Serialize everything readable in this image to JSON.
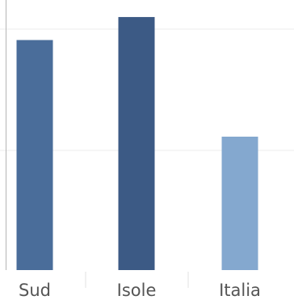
{
  "chart_data": {
    "type": "bar",
    "categories": [
      "Sud",
      "Isole",
      "Italia"
    ],
    "values": [
      100,
      110,
      58
    ],
    "title": "",
    "xlabel": "",
    "ylabel": "",
    "ylim": [
      0,
      116
    ],
    "grid": true,
    "legend": "none",
    "colors": [
      "#4a6d9a",
      "#3c5a85",
      "#84a8cf"
    ]
  }
}
